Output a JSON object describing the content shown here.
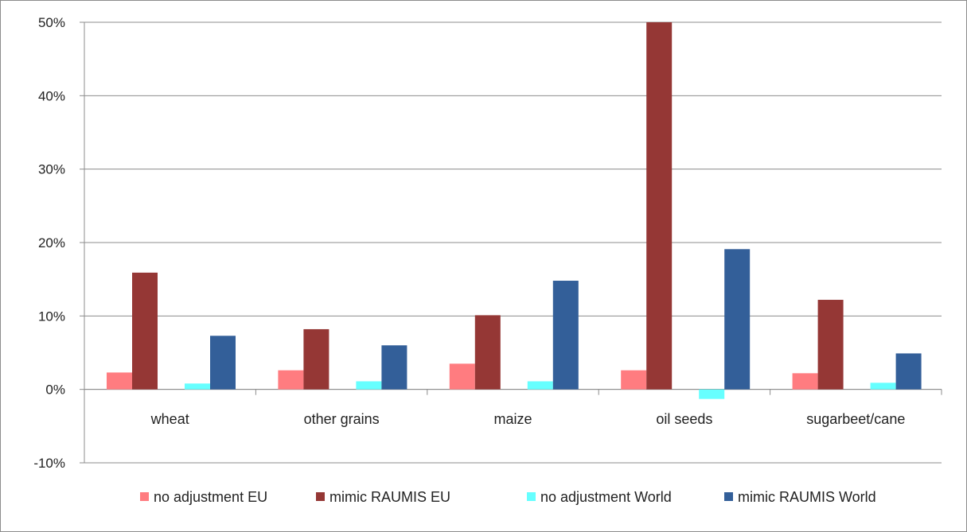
{
  "chart_data": {
    "type": "bar",
    "categories": [
      "wheat",
      "other grains",
      "maize",
      "oil seeds",
      "sugarbeet/cane"
    ],
    "series": [
      {
        "name": "no adjustment EU",
        "color": "#ff7c80",
        "values": [
          2.3,
          2.6,
          3.5,
          2.6,
          2.2
        ]
      },
      {
        "name": "mimic RAUMIS EU",
        "color": "#953735",
        "values": [
          15.9,
          8.2,
          10.1,
          50.0,
          12.2
        ]
      },
      {
        "name": "no adjustment World",
        "color": "#66ffff",
        "values": [
          0.8,
          1.1,
          1.1,
          -1.3,
          0.9
        ]
      },
      {
        "name": "mimic RAUMIS World",
        "color": "#335f99",
        "values": [
          7.3,
          6.0,
          14.8,
          19.1,
          4.9
        ]
      }
    ],
    "ylim": [
      -10,
      50
    ],
    "yticks": [
      -10,
      0,
      10,
      20,
      30,
      40,
      50
    ],
    "ytick_labels": [
      "-10%",
      "0%",
      "10%",
      "20%",
      "30%",
      "40%",
      "50%"
    ],
    "grid": true,
    "legend_position": "bottom"
  }
}
